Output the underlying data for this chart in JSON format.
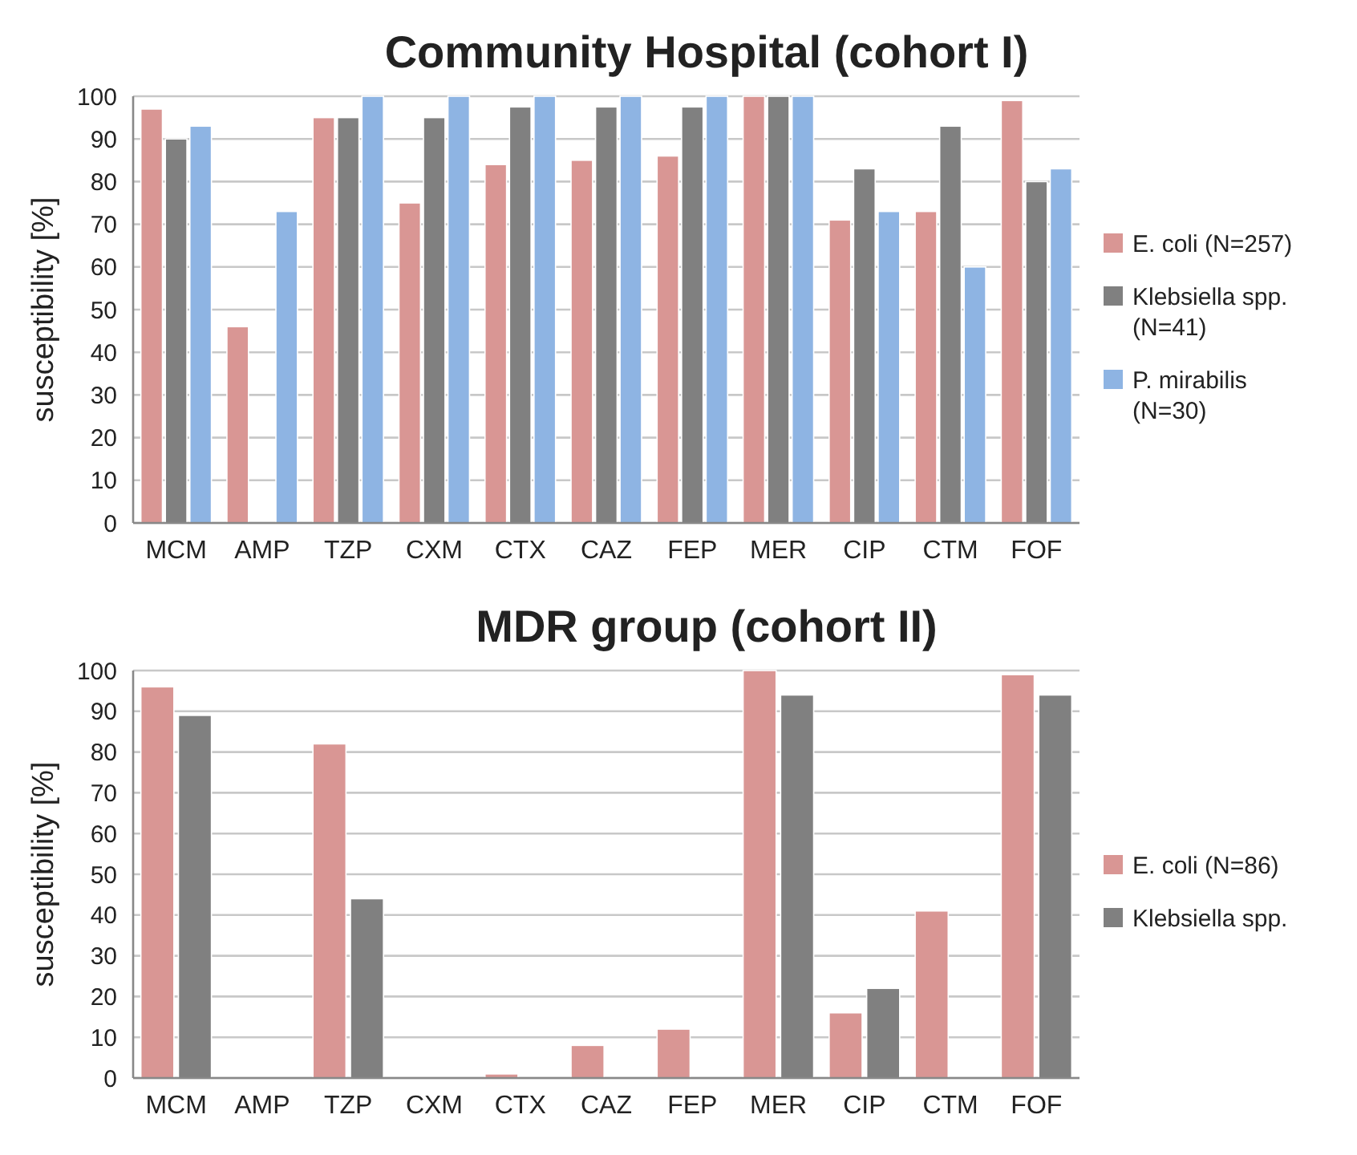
{
  "chart_data": [
    {
      "type": "bar",
      "title": "Community Hospital (cohort I)",
      "ylabel": "susceptibility [%]",
      "categories": [
        "MCM",
        "AMP",
        "TZP",
        "CXM",
        "CTX",
        "CAZ",
        "FEP",
        "MER",
        "CIP",
        "CTM",
        "FOF"
      ],
      "series": [
        {
          "name": "E. coli (N=257)",
          "color": "#d99694",
          "values": [
            97,
            46,
            95,
            75,
            84,
            85,
            86,
            100,
            71,
            73,
            99
          ]
        },
        {
          "name": "Klebsiella spp. (N=41)",
          "color": "#808080",
          "values": [
            90,
            0,
            95,
            95,
            97.5,
            97.5,
            97.5,
            100,
            83,
            93,
            80
          ]
        },
        {
          "name": "P. mirabilis (N=30)",
          "color": "#8eb4e3",
          "values": [
            93,
            73,
            100,
            100,
            100,
            100,
            100,
            100,
            73,
            60,
            83
          ]
        }
      ],
      "ylim": [
        0,
        100
      ],
      "yticks": [
        0,
        10,
        20,
        30,
        40,
        50,
        60,
        70,
        80,
        90,
        100
      ],
      "grid": "y",
      "legend": "right"
    },
    {
      "type": "bar",
      "title": "MDR group (cohort II)",
      "ylabel": "susceptibility [%]",
      "categories": [
        "MCM",
        "AMP",
        "TZP",
        "CXM",
        "CTX",
        "CAZ",
        "FEP",
        "MER",
        "CIP",
        "CTM",
        "FOF"
      ],
      "series": [
        {
          "name": "E. coli (N=86)",
          "color": "#d99694",
          "values": [
            96,
            0,
            82,
            0,
            1,
            8,
            12,
            100,
            16,
            41,
            99
          ]
        },
        {
          "name": "Klebsiella spp.",
          "color": "#808080",
          "values": [
            89,
            0,
            44,
            0,
            0,
            0,
            0,
            94,
            22,
            0,
            94
          ]
        }
      ],
      "ylim": [
        0,
        100
      ],
      "yticks": [
        0,
        10,
        20,
        30,
        40,
        50,
        60,
        70,
        80,
        90,
        100
      ],
      "grid": "y",
      "legend": "right"
    }
  ]
}
